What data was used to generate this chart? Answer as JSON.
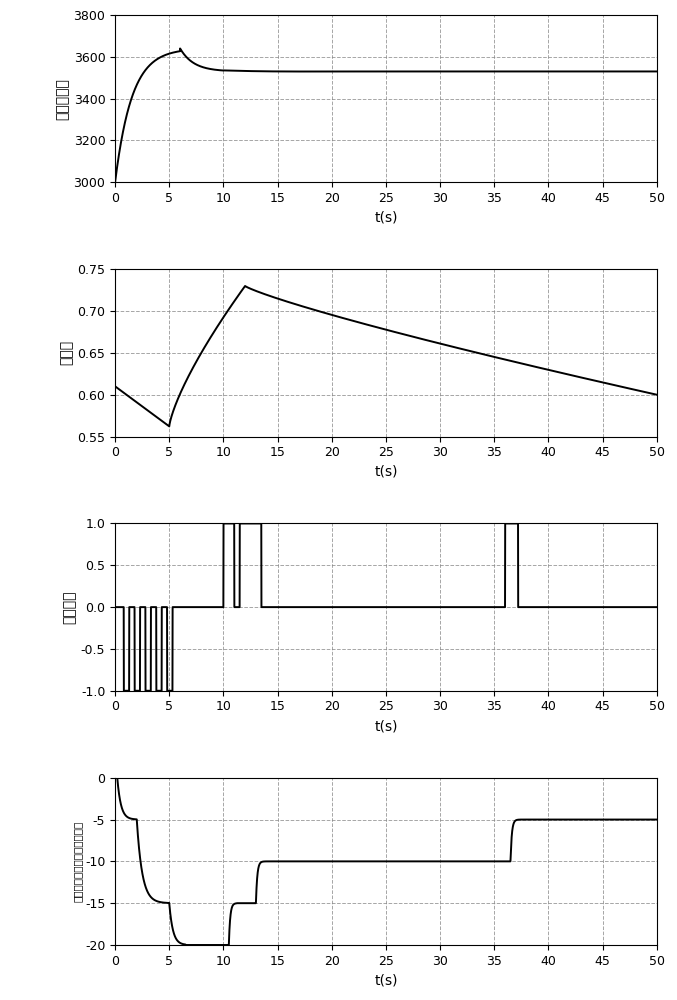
{
  "fig_width": 6.77,
  "fig_height": 10.0,
  "dpi": 100,
  "background_color": "#ffffff",
  "grid_color_dash": "#888888",
  "line_color": "#000000",
  "subplot1": {
    "ylabel": "高度（米）",
    "xlabel": "t(s)",
    "xlim": [
      0,
      50
    ],
    "ylim": [
      3000,
      3800
    ],
    "yticks": [
      3000,
      3200,
      3400,
      3600,
      3800
    ],
    "xticks": [
      0,
      5,
      10,
      15,
      20,
      25,
      30,
      35,
      40,
      45,
      50
    ]
  },
  "subplot2": {
    "ylabel": "马赫数",
    "xlabel": "t(s)",
    "xlim": [
      0,
      50
    ],
    "ylim": [
      0.55,
      0.75
    ],
    "yticks": [
      0.55,
      0.6,
      0.65,
      0.7,
      0.75
    ],
    "xticks": [
      0,
      5,
      10,
      15,
      20,
      25,
      30,
      35,
      40,
      45,
      50
    ]
  },
  "subplot3": {
    "ylabel": "调效信号",
    "xlabel": "t(s)",
    "xlim": [
      0,
      50
    ],
    "ylim": [
      -1,
      1
    ],
    "yticks": [
      -1,
      -0.5,
      0,
      0.5,
      1
    ],
    "xticks": [
      0,
      5,
      10,
      15,
      20,
      25,
      30,
      35,
      40,
      45,
      50
    ]
  },
  "subplot4": {
    "ylabel": "调效驱动的杆位移量（毫米）",
    "xlabel": "t(s)",
    "xlim": [
      0,
      50
    ],
    "ylim": [
      -20,
      0
    ],
    "yticks": [
      -20,
      -15,
      -10,
      -5,
      0
    ],
    "xticks": [
      0,
      5,
      10,
      15,
      20,
      25,
      30,
      35,
      40,
      45,
      50
    ]
  }
}
